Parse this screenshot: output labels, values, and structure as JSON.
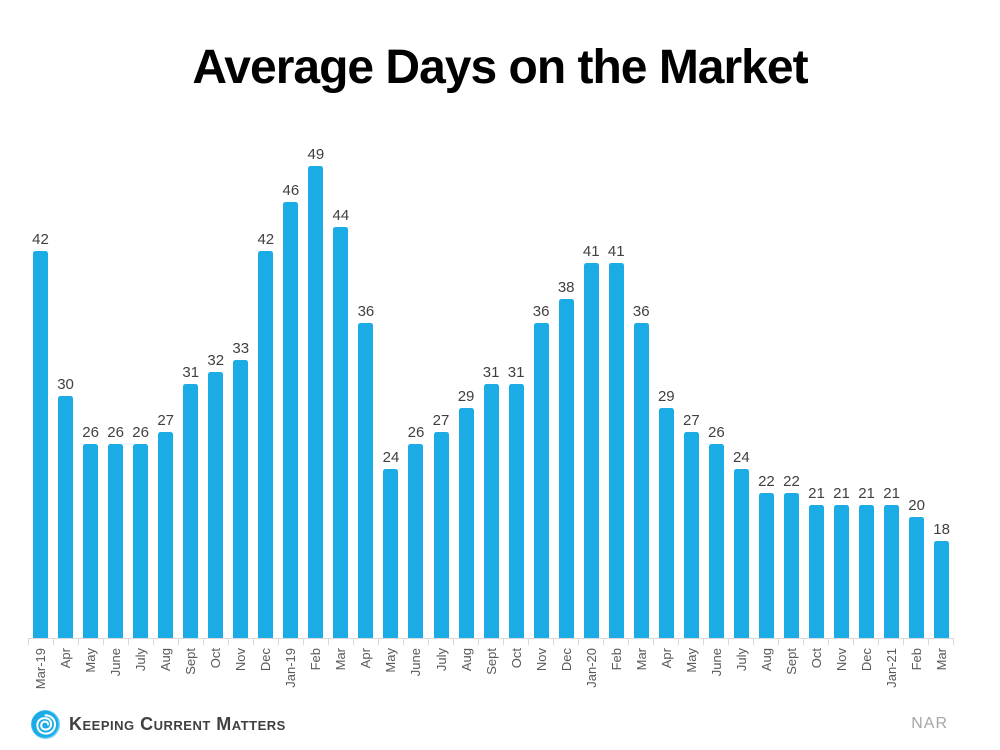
{
  "page": {
    "background": "#FFFFFF"
  },
  "chart_data": {
    "type": "bar",
    "title": "Average Days on the Market",
    "categories": [
      "Mar-19",
      "Apr",
      "May",
      "June",
      "July",
      "Aug",
      "Sept",
      "Oct",
      "Nov",
      "Dec",
      "Jan-19",
      "Feb",
      "Mar",
      "Apr",
      "May",
      "June",
      "July",
      "Aug",
      "Sept",
      "Oct",
      "Nov",
      "Dec",
      "Jan-20",
      "Feb",
      "Mar",
      "Apr",
      "May",
      "June",
      "July",
      "Aug",
      "Sept",
      "Oct",
      "Nov",
      "Dec",
      "Jan-21",
      "Feb",
      "Mar"
    ],
    "values": [
      42,
      30,
      26,
      26,
      26,
      27,
      31,
      32,
      33,
      42,
      46,
      49,
      44,
      36,
      24,
      26,
      27,
      29,
      31,
      31,
      36,
      38,
      41,
      41,
      36,
      29,
      27,
      26,
      24,
      22,
      22,
      21,
      21,
      21,
      21,
      20,
      18
    ],
    "xlabel": "",
    "ylabel": "",
    "ylim": [
      10,
      49
    ],
    "grid": false,
    "legend": false,
    "value_labels_shown": true,
    "bar_color": "#1BACE6",
    "value_label_color": "#404040",
    "axis_label_color": "#595959",
    "axis_line_color": "#D9D9D9"
  },
  "footer": {
    "logo_text": "Keeping Current Matters",
    "logo_icon": "kcm-swirl-icon",
    "logo_color": "#1BACE6",
    "source_label": "NAR"
  }
}
